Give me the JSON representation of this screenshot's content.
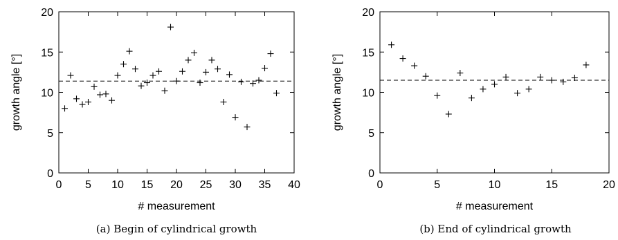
{
  "chart_data": [
    {
      "type": "scatter",
      "caption": "(a) Begin of cylindrical growth",
      "xlabel": "# measurement",
      "ylabel": "growth angle [°]",
      "xlim": [
        0,
        40
      ],
      "ylim": [
        0,
        20
      ],
      "xticks": [
        "0",
        "5",
        "10",
        "15",
        "20",
        "25",
        "30",
        "35",
        "40"
      ],
      "yticks": [
        "0",
        "5",
        "10",
        "15",
        "20"
      ],
      "reference_line": 11.4,
      "x": [
        1,
        2,
        3,
        4,
        5,
        6,
        7,
        8,
        9,
        10,
        11,
        12,
        13,
        14,
        15,
        16,
        17,
        18,
        19,
        20,
        21,
        22,
        23,
        24,
        25,
        26,
        27,
        28,
        29,
        30,
        31,
        32,
        33,
        34,
        35,
        36,
        37
      ],
      "y": [
        8.0,
        12.1,
        9.2,
        8.5,
        8.8,
        10.7,
        9.7,
        9.8,
        9.0,
        12.1,
        13.5,
        15.1,
        12.9,
        10.8,
        11.2,
        12.1,
        12.6,
        10.2,
        18.1,
        11.4,
        12.6,
        14.0,
        14.9,
        11.2,
        12.5,
        14.0,
        12.9,
        8.8,
        12.2,
        6.9,
        11.3,
        5.7,
        11.1,
        11.5,
        13.0,
        14.8,
        9.9
      ]
    },
    {
      "type": "scatter",
      "caption": "(b) End of cylindrical growth",
      "xlabel": "# measurement",
      "ylabel": "growth angle [°]",
      "xlim": [
        0,
        20
      ],
      "ylim": [
        0,
        20
      ],
      "xticks": [
        "0",
        "5",
        "10",
        "15",
        "20"
      ],
      "yticks": [
        "0",
        "5",
        "10",
        "15",
        "20"
      ],
      "reference_line": 11.5,
      "x": [
        1,
        2,
        3,
        4,
        5,
        6,
        7,
        8,
        9,
        10,
        11,
        12,
        13,
        14,
        15,
        16,
        17,
        18
      ],
      "y": [
        15.9,
        14.2,
        13.3,
        12.0,
        9.6,
        7.3,
        12.4,
        9.3,
        10.4,
        11.0,
        11.9,
        9.9,
        10.4,
        11.9,
        11.5,
        11.3,
        11.8,
        13.4
      ]
    }
  ]
}
